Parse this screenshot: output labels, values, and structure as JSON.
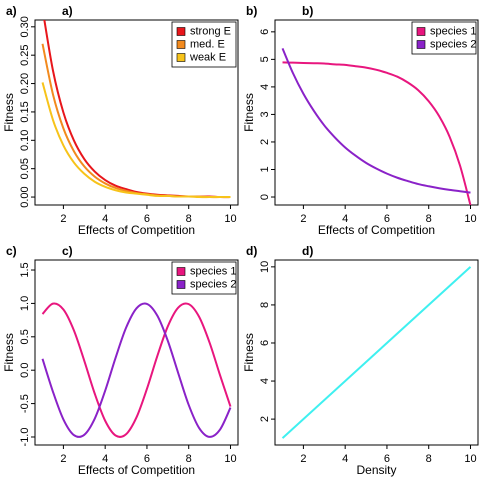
{
  "chart_data": [
    {
      "type": "line",
      "tag": "a)",
      "title": "a)",
      "xlabel": "Effects of Competition",
      "ylabel": "Fitness",
      "x": [
        1,
        1.5,
        2,
        2.5,
        3,
        3.5,
        4,
        4.5,
        5,
        5.5,
        6,
        6.5,
        7,
        7.5,
        8,
        8.5,
        9,
        9.5,
        10
      ],
      "series": [
        {
          "name": "strong E",
          "color": "#e8161b",
          "values": [
            0.332,
            0.223,
            0.149,
            0.1,
            0.067,
            0.045,
            0.03,
            0.02,
            0.014,
            0.009,
            0.006,
            0.004,
            0.003,
            0.002,
            0.001,
            0.001,
            0.001,
            0,
            0
          ]
        },
        {
          "name": "med. E",
          "color": "#f28a1e",
          "values": [
            0.27,
            0.181,
            0.121,
            0.081,
            0.054,
            0.036,
            0.024,
            0.016,
            0.011,
            0.007,
            0.005,
            0.003,
            0.002,
            0.001,
            0.001,
            0.001,
            0,
            0,
            0
          ]
        },
        {
          "name": "weak E",
          "color": "#f7c31a",
          "values": [
            0.202,
            0.136,
            0.091,
            0.061,
            0.041,
            0.027,
            0.018,
            0.012,
            0.008,
            0.006,
            0.004,
            0.002,
            0.002,
            0.001,
            0.001,
            0,
            0,
            0,
            0
          ]
        }
      ],
      "xlim": [
        0.64,
        10.36
      ],
      "ylim": [
        -0.014,
        0.312
      ],
      "xticks": [
        2,
        4,
        6,
        8,
        10
      ],
      "yticks": [
        {
          "value": 0,
          "label": "0.00"
        },
        0.05,
        {
          "value": 0.1,
          "label": "0.10"
        },
        0.15,
        {
          "value": 0.2,
          "label": "0.20"
        },
        0.25,
        {
          "value": 0.3,
          "label": "0.30"
        }
      ],
      "legend": "topright"
    },
    {
      "type": "line",
      "tag": "b)",
      "title": "b)",
      "xlabel": "Effects of Competition",
      "ylabel": "Fitness",
      "x": [
        1,
        1.5,
        2,
        2.5,
        3,
        3.5,
        4,
        4.5,
        5,
        5.5,
        6,
        6.5,
        7,
        7.5,
        8,
        8.5,
        9,
        9.5,
        10
      ],
      "series": [
        {
          "name": "species 1",
          "color": "#e8167e",
          "values": [
            4.89,
            4.88,
            4.87,
            4.86,
            4.85,
            4.82,
            4.8,
            4.75,
            4.7,
            4.62,
            4.51,
            4.37,
            4.16,
            3.88,
            3.48,
            2.94,
            2.19,
            1.14,
            -0.3
          ]
        },
        {
          "name": "species 2",
          "color": "#8a22c8",
          "values": [
            5.4,
            4.5,
            3.75,
            3.13,
            2.6,
            2.17,
            1.8,
            1.5,
            1.24,
            1.03,
            0.85,
            0.7,
            0.58,
            0.47,
            0.39,
            0.32,
            0.26,
            0.21,
            0.16
          ]
        }
      ],
      "xlim": [
        0.64,
        10.36
      ],
      "ylim": [
        -0.29,
        6.43
      ],
      "xticks": [
        2,
        4,
        6,
        8,
        10
      ],
      "yticks": [
        0,
        1,
        2,
        3,
        4,
        5,
        6
      ],
      "legend": "topright"
    },
    {
      "type": "line",
      "tag": "c)",
      "title": "c)",
      "xlabel": "Effects of Competition",
      "ylabel": "Fitness",
      "x": [
        1,
        1.5,
        2,
        2.5,
        3,
        3.5,
        4,
        4.5,
        5,
        5.5,
        6,
        6.5,
        7,
        7.5,
        8,
        8.5,
        9,
        9.5,
        10
      ],
      "series": [
        {
          "name": "species 1",
          "color": "#e8167e",
          "values": [
            0.841,
            0.997,
            0.909,
            0.598,
            0.141,
            -0.351,
            -0.757,
            -0.978,
            -0.959,
            -0.706,
            -0.279,
            0.215,
            0.657,
            0.938,
            0.989,
            0.798,
            0.412,
            -0.075,
            -0.544
          ]
        },
        {
          "name": "species 2",
          "color": "#8a22c8",
          "values": [
            0.17,
            -0.323,
            -0.737,
            -0.971,
            -0.967,
            -0.726,
            -0.307,
            0.187,
            0.635,
            0.927,
            0.993,
            0.815,
            0.439,
            -0.046,
            -0.52,
            -0.866,
            -0.999,
            -0.889,
            -0.56
          ]
        }
      ],
      "xlim": [
        0.64,
        10.36
      ],
      "ylim": [
        -1.12,
        1.65
      ],
      "xticks": [
        2,
        4,
        6,
        8,
        10
      ],
      "yticks": [
        {
          "value": -1,
          "label": "-1.0"
        },
        -0.5,
        {
          "value": 0,
          "label": "0.0"
        },
        0.5,
        {
          "value": 1,
          "label": "1.0"
        },
        1.5
      ],
      "legend": "topright"
    },
    {
      "type": "line",
      "tag": "d)",
      "title": "d)",
      "xlabel": "Density",
      "ylabel": "Fitness",
      "x": [
        1,
        10
      ],
      "series": [
        {
          "color": "#3ff0f0",
          "values": [
            1,
            10
          ]
        }
      ],
      "xlim": [
        0.64,
        10.36
      ],
      "ylim": [
        0.64,
        10.36
      ],
      "xticks": [
        2,
        4,
        6,
        8,
        10
      ],
      "yticks": [
        2,
        4,
        6,
        8,
        10
      ]
    }
  ]
}
